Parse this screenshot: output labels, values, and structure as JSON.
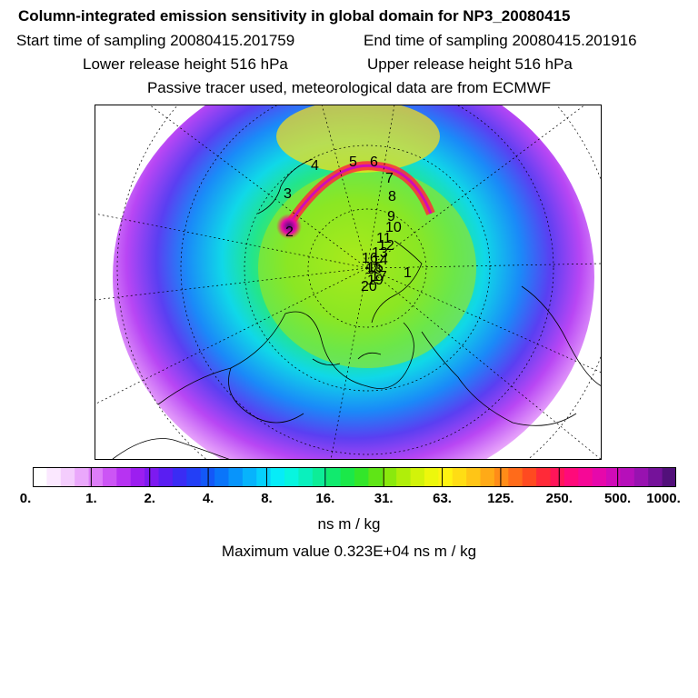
{
  "header": {
    "title": "Column-integrated emission sensitivity in global domain for NP3_20080415",
    "start_label": "Start time of sampling 20080415.201759",
    "end_label": "End time of sampling 20080415.201916",
    "lower_label": "Lower release height  516 hPa",
    "upper_label": "Upper release height  516 hPa",
    "tracer_note": "Passive tracer used, meteorological data are from ECMWF"
  },
  "map": {
    "projection": "polar-stereographic north",
    "point_labels": [
      "1",
      "2",
      "3",
      "4",
      "5",
      "6",
      "7",
      "8",
      "9",
      "10",
      "11",
      "12",
      "13",
      "14",
      "15",
      "16",
      "17",
      "18",
      "19",
      "20"
    ]
  },
  "colorbar": {
    "ticks": [
      "0.",
      "1.",
      "2.",
      "4.",
      "8.",
      "16.",
      "31.",
      "63.",
      "125.",
      "250.",
      "500.",
      "1000."
    ],
    "colors": [
      "#ffffff",
      "#fbe8ff",
      "#f4cdfd",
      "#eaa8fb",
      "#dd7df8",
      "#cc55f5",
      "#b733f2",
      "#9c1ef0",
      "#7d1af0",
      "#5a1ef2",
      "#3a2cf4",
      "#233ff6",
      "#1358f8",
      "#0a75fa",
      "#0894fb",
      "#07b3fc",
      "#06d0fc",
      "#06ecf8",
      "#08f5df",
      "#0af0bd",
      "#0ded97",
      "#11ea6e",
      "#1be849",
      "#33e62a",
      "#5fe516",
      "#8ae90d",
      "#b0ee0a",
      "#d2f30a",
      "#edf70c",
      "#fff311",
      "#ffdd14",
      "#ffc516",
      "#ffaa17",
      "#ff8c18",
      "#ff6b1a",
      "#ff4a20",
      "#ff2a38",
      "#ff1559",
      "#ff0a7a",
      "#f60896",
      "#e608ab",
      "#d00bb8",
      "#b60fba",
      "#9812b0",
      "#75129a",
      "#52107a"
    ],
    "units": "ns m / kg",
    "scale": "log"
  },
  "footer": {
    "max_label": "Maximum value  0.323E+04 ns m / kg"
  }
}
